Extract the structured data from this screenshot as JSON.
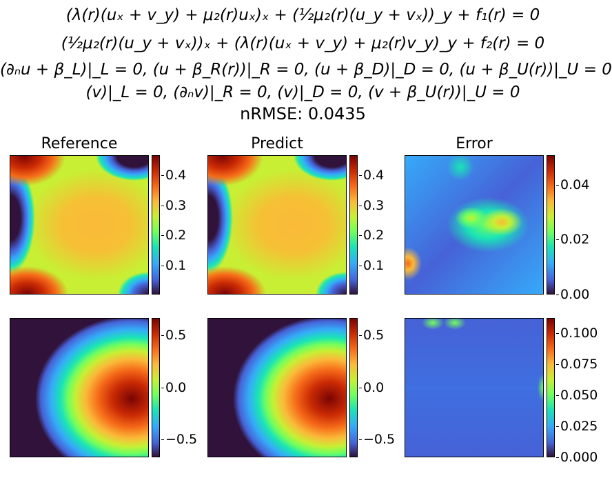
{
  "equations": [
    "(λ(r)(uₓ + v_y) + μ₂(r)uₓ)ₓ + (½μ₂(r)(u_y + vₓ))_y + f₁(r) = 0",
    "(½μ₂(r)(u_y + vₓ))ₓ + (λ(r)(uₓ + v_y) + μ₂(r)v_y)_y + f₂(r) = 0",
    "(∂ₙu + β_L)|_L = 0,  (u + β_R(r))|_R = 0,  (u + β_D)|_D = 0,  (u + β_U(r))|_U = 0",
    "(v)|_L = 0,  (∂ₙv)|_R = 0,  (v)|_D = 0,  (v + β_U(r))|_U = 0"
  ],
  "nrmse": "nRMSE: 0.0435",
  "chart_data": [
    {
      "type": "heatmap",
      "title": "Reference",
      "row": "u",
      "colormap": "turbo",
      "range": [
        0.0,
        0.46
      ],
      "ticks": [
        "0.1",
        "0.2",
        "0.3",
        "0.4"
      ]
    },
    {
      "type": "heatmap",
      "title": "Predict",
      "row": "u",
      "colormap": "turbo",
      "range": [
        0.0,
        0.46
      ],
      "ticks": [
        "0.1",
        "0.2",
        "0.3",
        "0.4"
      ]
    },
    {
      "type": "heatmap",
      "title": "Error",
      "row": "u",
      "colormap": "turbo",
      "range": [
        0.0,
        0.051
      ],
      "ticks": [
        "0.00",
        "0.02",
        "0.04"
      ]
    },
    {
      "type": "heatmap",
      "title": "",
      "row": "v",
      "colormap": "turbo",
      "range": [
        -0.66,
        0.66
      ],
      "ticks": [
        "−0.5",
        "0.0",
        "0.5"
      ]
    },
    {
      "type": "heatmap",
      "title": "",
      "row": "v",
      "colormap": "turbo",
      "range": [
        -0.66,
        0.66
      ],
      "ticks": [
        "−0.5",
        "0.0",
        "0.5"
      ]
    },
    {
      "type": "heatmap",
      "title": "",
      "row": "v",
      "colormap": "turbo",
      "range": [
        0.0,
        0.112
      ],
      "ticks": [
        "0.000",
        "0.025",
        "0.050",
        "0.075",
        "0.100"
      ]
    }
  ]
}
